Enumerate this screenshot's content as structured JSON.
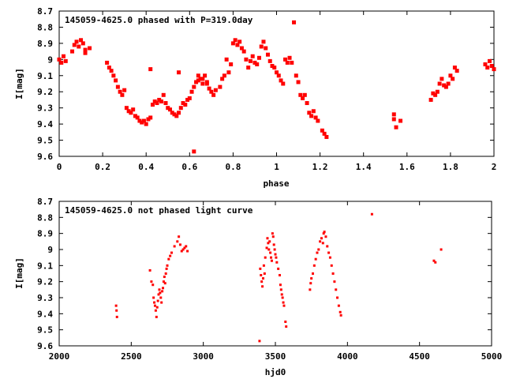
{
  "chart_data": [
    {
      "type": "scatter",
      "title": "145059-4625.0 phased with P=319.0day",
      "xlabel": "phase",
      "ylabel": "I[mag]",
      "xlim": [
        0,
        2
      ],
      "ylim": [
        8.7,
        9.6
      ],
      "y_inverted": true,
      "grid": false,
      "marker_color": "#ff0000",
      "x_ticks": [
        "0",
        "0.2",
        "0.4",
        "0.6",
        "0.8",
        "1",
        "1.2",
        "1.4",
        "1.6",
        "1.8",
        "2"
      ],
      "y_ticks": [
        "8.7",
        "8.8",
        "8.9",
        "9",
        "9.1",
        "9.2",
        "9.3",
        "9.4",
        "9.5",
        "9.6"
      ],
      "points": [
        [
          0.0,
          9.0
        ],
        [
          0.01,
          9.02
        ],
        [
          0.02,
          8.98
        ],
        [
          0.03,
          9.01
        ],
        [
          0.06,
          8.95
        ],
        [
          0.07,
          8.91
        ],
        [
          0.08,
          8.89
        ],
        [
          0.09,
          8.92
        ],
        [
          0.1,
          8.88
        ],
        [
          0.11,
          8.9
        ],
        [
          0.12,
          8.94
        ],
        [
          0.12,
          8.96
        ],
        [
          0.14,
          8.93
        ],
        [
          0.22,
          9.02
        ],
        [
          0.23,
          9.05
        ],
        [
          0.24,
          9.07
        ],
        [
          0.25,
          9.1
        ],
        [
          0.26,
          9.13
        ],
        [
          0.27,
          9.17
        ],
        [
          0.28,
          9.2
        ],
        [
          0.29,
          9.22
        ],
        [
          0.3,
          9.19
        ],
        [
          0.31,
          9.3
        ],
        [
          0.32,
          9.32
        ],
        [
          0.33,
          9.33
        ],
        [
          0.34,
          9.31
        ],
        [
          0.35,
          9.35
        ],
        [
          0.36,
          9.36
        ],
        [
          0.37,
          9.38
        ],
        [
          0.38,
          9.39
        ],
        [
          0.39,
          9.38
        ],
        [
          0.4,
          9.4
        ],
        [
          0.41,
          9.37
        ],
        [
          0.42,
          9.36
        ],
        [
          0.43,
          9.28
        ],
        [
          0.44,
          9.26
        ],
        [
          0.45,
          9.27
        ],
        [
          0.46,
          9.25
        ],
        [
          0.47,
          9.26
        ],
        [
          0.48,
          9.22
        ],
        [
          0.49,
          9.27
        ],
        [
          0.5,
          9.3
        ],
        [
          0.51,
          9.31
        ],
        [
          0.52,
          9.33
        ],
        [
          0.53,
          9.34
        ],
        [
          0.54,
          9.35
        ],
        [
          0.55,
          9.33
        ],
        [
          0.56,
          9.3
        ],
        [
          0.57,
          9.27
        ],
        [
          0.58,
          9.28
        ],
        [
          0.59,
          9.25
        ],
        [
          0.6,
          9.24
        ],
        [
          0.61,
          9.2
        ],
        [
          0.62,
          9.17
        ],
        [
          0.63,
          9.14
        ],
        [
          0.64,
          9.13
        ],
        [
          0.65,
          9.12
        ],
        [
          0.66,
          9.15
        ],
        [
          0.67,
          9.1
        ],
        [
          0.68,
          9.14
        ],
        [
          0.69,
          9.18
        ],
        [
          0.7,
          9.2
        ],
        [
          0.71,
          9.22
        ],
        [
          0.72,
          9.19
        ],
        [
          0.42,
          9.06
        ],
        [
          0.55,
          9.08
        ],
        [
          0.62,
          9.57
        ],
        [
          0.64,
          9.1
        ],
        [
          0.66,
          9.12
        ],
        [
          0.68,
          9.15
        ],
        [
          0.74,
          9.17
        ],
        [
          0.75,
          9.12
        ],
        [
          0.76,
          9.1
        ],
        [
          0.77,
          9.0
        ],
        [
          0.78,
          9.08
        ],
        [
          0.79,
          9.03
        ],
        [
          0.8,
          8.9
        ],
        [
          0.81,
          8.88
        ],
        [
          0.82,
          8.91
        ],
        [
          0.83,
          8.89
        ],
        [
          0.84,
          8.93
        ],
        [
          0.85,
          8.95
        ],
        [
          0.86,
          9.0
        ],
        [
          0.87,
          9.05
        ],
        [
          0.88,
          9.01
        ],
        [
          0.89,
          8.98
        ],
        [
          0.9,
          9.02
        ],
        [
          0.91,
          9.03
        ],
        [
          0.92,
          8.99
        ],
        [
          0.93,
          8.92
        ],
        [
          0.94,
          8.89
        ],
        [
          0.95,
          8.93
        ],
        [
          0.96,
          8.97
        ],
        [
          0.97,
          9.01
        ],
        [
          0.98,
          9.04
        ],
        [
          0.99,
          9.05
        ],
        [
          1.0,
          9.08
        ],
        [
          1.01,
          9.1
        ],
        [
          1.02,
          9.13
        ],
        [
          1.03,
          9.15
        ],
        [
          1.04,
          9.0
        ],
        [
          1.05,
          9.02
        ],
        [
          1.06,
          8.99
        ],
        [
          1.07,
          9.02
        ],
        [
          1.08,
          8.77
        ],
        [
          1.09,
          9.1
        ],
        [
          1.1,
          9.14
        ],
        [
          1.11,
          9.22
        ],
        [
          1.12,
          9.24
        ],
        [
          1.13,
          9.22
        ],
        [
          1.14,
          9.27
        ],
        [
          1.15,
          9.33
        ],
        [
          1.16,
          9.35
        ],
        [
          1.17,
          9.32
        ],
        [
          1.18,
          9.36
        ],
        [
          1.19,
          9.38
        ],
        [
          1.21,
          9.44
        ],
        [
          1.22,
          9.46
        ],
        [
          1.23,
          9.48
        ],
        [
          1.54,
          9.34
        ],
        [
          1.54,
          9.37
        ],
        [
          1.55,
          9.42
        ],
        [
          1.57,
          9.38
        ],
        [
          1.71,
          9.25
        ],
        [
          1.72,
          9.21
        ],
        [
          1.73,
          9.22
        ],
        [
          1.74,
          9.2
        ],
        [
          1.75,
          9.15
        ],
        [
          1.76,
          9.12
        ],
        [
          1.77,
          9.16
        ],
        [
          1.78,
          9.17
        ],
        [
          1.79,
          9.15
        ],
        [
          1.8,
          9.1
        ],
        [
          1.81,
          9.12
        ],
        [
          1.82,
          9.05
        ],
        [
          1.83,
          9.07
        ],
        [
          1.96,
          9.03
        ],
        [
          1.97,
          9.05
        ],
        [
          1.98,
          9.01
        ],
        [
          1.99,
          9.04
        ],
        [
          2.0,
          9.06
        ]
      ]
    },
    {
      "type": "scatter",
      "title": "145059-4625.0 not phased light curve",
      "xlabel": "hjd0",
      "ylabel": "I[mag]",
      "xlim": [
        2000,
        5000
      ],
      "ylim": [
        8.7,
        9.6
      ],
      "y_inverted": true,
      "grid": false,
      "marker_color": "#ff0000",
      "x_ticks": [
        "2000",
        "2500",
        "3000",
        "3500",
        "4000",
        "4500",
        "5000"
      ],
      "y_ticks": [
        "8.7",
        "8.8",
        "8.9",
        "9",
        "9.1",
        "9.2",
        "9.3",
        "9.4",
        "9.5",
        "9.6"
      ],
      "points": [
        [
          2395,
          9.35
        ],
        [
          2398,
          9.38
        ],
        [
          2401,
          9.42
        ],
        [
          2630,
          9.13
        ],
        [
          2640,
          9.2
        ],
        [
          2650,
          9.22
        ],
        [
          2655,
          9.3
        ],
        [
          2660,
          9.33
        ],
        [
          2665,
          9.35
        ],
        [
          2670,
          9.38
        ],
        [
          2675,
          9.42
        ],
        [
          2680,
          9.36
        ],
        [
          2685,
          9.32
        ],
        [
          2690,
          9.28
        ],
        [
          2695,
          9.25
        ],
        [
          2700,
          9.27
        ],
        [
          2705,
          9.3
        ],
        [
          2710,
          9.33
        ],
        [
          2715,
          9.26
        ],
        [
          2720,
          9.24
        ],
        [
          2725,
          9.2
        ],
        [
          2730,
          9.17
        ],
        [
          2735,
          9.21
        ],
        [
          2740,
          9.15
        ],
        [
          2745,
          9.12
        ],
        [
          2750,
          9.1
        ],
        [
          2760,
          9.06
        ],
        [
          2770,
          9.04
        ],
        [
          2780,
          9.02
        ],
        [
          2800,
          8.98
        ],
        [
          2820,
          8.95
        ],
        [
          2830,
          8.92
        ],
        [
          2840,
          8.97
        ],
        [
          2850,
          9.01
        ],
        [
          2860,
          9.0
        ],
        [
          2870,
          8.99
        ],
        [
          2880,
          8.98
        ],
        [
          2890,
          9.01
        ],
        [
          3390,
          9.57
        ],
        [
          3395,
          9.12
        ],
        [
          3400,
          9.16
        ],
        [
          3405,
          9.2
        ],
        [
          3410,
          9.23
        ],
        [
          3415,
          9.18
        ],
        [
          3420,
          9.1
        ],
        [
          3425,
          9.15
        ],
        [
          3430,
          9.05
        ],
        [
          3440,
          8.99
        ],
        [
          3445,
          8.93
        ],
        [
          3450,
          8.96
        ],
        [
          3455,
          9.0
        ],
        [
          3460,
          8.95
        ],
        [
          3465,
          9.02
        ],
        [
          3470,
          9.05
        ],
        [
          3475,
          9.07
        ],
        [
          3480,
          8.9
        ],
        [
          3485,
          8.92
        ],
        [
          3490,
          8.97
        ],
        [
          3495,
          9.0
        ],
        [
          3500,
          9.03
        ],
        [
          3505,
          9.05
        ],
        [
          3510,
          9.08
        ],
        [
          3520,
          9.12
        ],
        [
          3530,
          9.16
        ],
        [
          3535,
          9.22
        ],
        [
          3540,
          9.25
        ],
        [
          3545,
          9.28
        ],
        [
          3550,
          9.3
        ],
        [
          3555,
          9.33
        ],
        [
          3560,
          9.35
        ],
        [
          3570,
          9.45
        ],
        [
          3575,
          9.48
        ],
        [
          3740,
          9.25
        ],
        [
          3745,
          9.21
        ],
        [
          3750,
          9.18
        ],
        [
          3760,
          9.15
        ],
        [
          3770,
          9.1
        ],
        [
          3780,
          9.06
        ],
        [
          3790,
          9.02
        ],
        [
          3800,
          9.0
        ],
        [
          3810,
          8.95
        ],
        [
          3820,
          8.93
        ],
        [
          3830,
          8.96
        ],
        [
          3835,
          8.9
        ],
        [
          3840,
          8.89
        ],
        [
          3850,
          8.92
        ],
        [
          3860,
          8.98
        ],
        [
          3870,
          9.02
        ],
        [
          3880,
          9.05
        ],
        [
          3890,
          9.1
        ],
        [
          3900,
          9.15
        ],
        [
          3910,
          9.2
        ],
        [
          3920,
          9.25
        ],
        [
          3930,
          9.3
        ],
        [
          3940,
          9.35
        ],
        [
          3950,
          9.39
        ],
        [
          3955,
          9.41
        ],
        [
          4170,
          8.78
        ],
        [
          4600,
          9.07
        ],
        [
          4610,
          9.08
        ],
        [
          4650,
          9.0
        ]
      ]
    }
  ]
}
